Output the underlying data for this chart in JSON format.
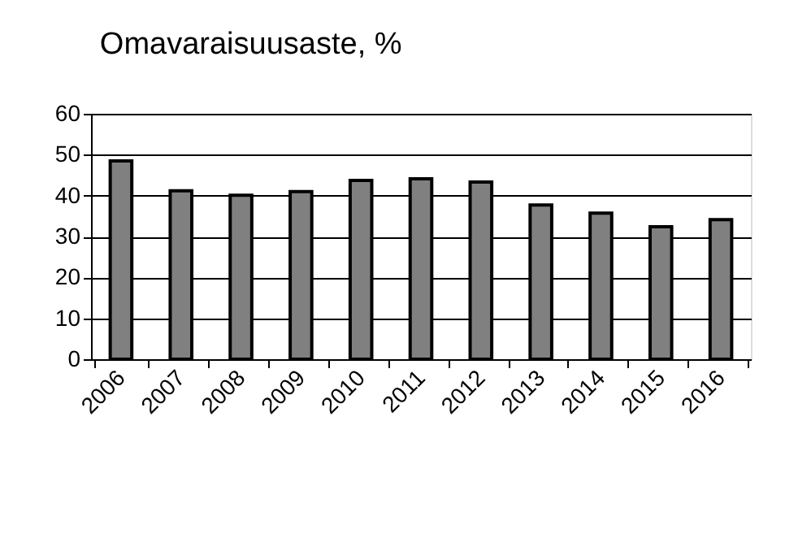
{
  "chart_data": {
    "type": "bar",
    "title": "Omavaraisuusaste,  %",
    "categories": [
      "2006",
      "2007",
      "2008",
      "2009",
      "2010",
      "2011",
      "2012",
      "2013",
      "2014",
      "2015",
      "2016"
    ],
    "values": [
      48.5,
      41.2,
      40.1,
      41.0,
      43.7,
      44.1,
      43.3,
      37.7,
      35.7,
      32.4,
      34.1
    ],
    "color": "#808080",
    "ylim": [
      0,
      60
    ],
    "yticks": [
      0,
      10,
      20,
      30,
      40,
      50,
      60
    ],
    "grid": "y"
  }
}
